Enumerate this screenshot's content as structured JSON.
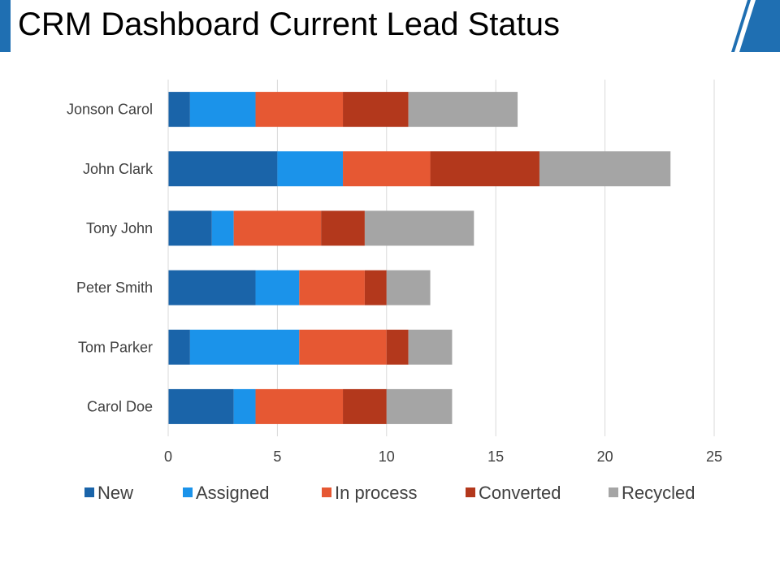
{
  "header": {
    "title": "CRM Dashboard Current Lead Status"
  },
  "colors": {
    "accent": "#1f6fb2",
    "stripe": "#1f6fb2"
  },
  "chart_data": {
    "type": "bar",
    "orientation": "horizontal",
    "stacked": true,
    "title": "",
    "xlabel": "",
    "ylabel": "",
    "xlim": [
      0,
      25
    ],
    "xticks": [
      0,
      5,
      10,
      15,
      20,
      25
    ],
    "grid": true,
    "legend_position": "bottom",
    "categories": [
      "Jonson Carol",
      "John Clark",
      "Tony John",
      "Peter Smith",
      "Tom Parker",
      "Carol Doe"
    ],
    "series": [
      {
        "name": "New",
        "color": "#1a64a9",
        "values": [
          1,
          5,
          2,
          4,
          1,
          3
        ]
      },
      {
        "name": "Assigned",
        "color": "#1b93ea",
        "values": [
          3,
          3,
          1,
          2,
          5,
          1
        ]
      },
      {
        "name": "In process",
        "color": "#e65833",
        "values": [
          4,
          4,
          4,
          3,
          4,
          4
        ]
      },
      {
        "name": "Converted",
        "color": "#b3381c",
        "values": [
          3,
          5,
          2,
          1,
          1,
          2
        ]
      },
      {
        "name": "Recycled",
        "color": "#a5a5a5",
        "values": [
          5,
          6,
          5,
          2,
          2,
          3
        ]
      }
    ]
  }
}
